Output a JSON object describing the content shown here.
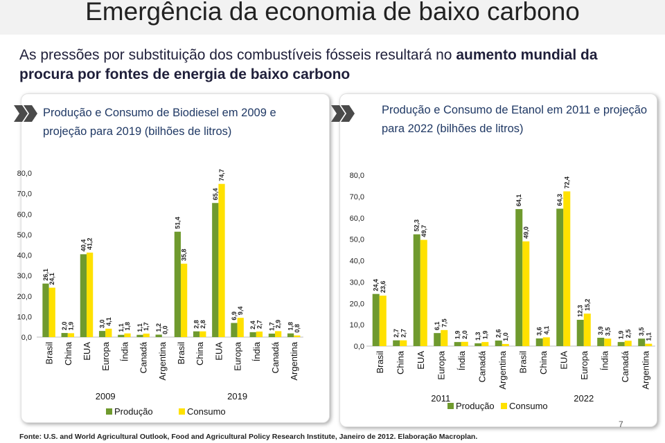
{
  "title": "Emergência da economia de baixo carbono",
  "subtitle": [
    "As pressões por substituição dos combustíveis fósseis resultará no ",
    "aumento mundial da procura por fontes de energia de baixo carbono"
  ],
  "footer": "Fonte: U.S. and World Agricultural Outlook, Food and Agricultural Policy Research Institute, Janeiro de 2012. Elaboração Macroplan.",
  "page_number": "7",
  "chart_data": [
    {
      "type": "bar",
      "title": "Produção e Consumo de Biodiesel em 2009 e projeção para 2019 (bilhões de litros)",
      "categories": [
        "Brasil",
        "China",
        "EUA",
        "Europa",
        "Índia",
        "Canadá",
        "Argentina",
        "Brasil",
        "China",
        "EUA",
        "Europa",
        "Índia",
        "Canadá",
        "Argentina"
      ],
      "group_labels": [
        "2009",
        "2019"
      ],
      "series": [
        {
          "name": "Produção",
          "color": "#6f9a2e",
          "values": [
            26.1,
            2.0,
            40.4,
            3.0,
            1.1,
            1.1,
            1.2,
            51.4,
            2.8,
            65.4,
            6.9,
            2.4,
            1.7,
            1.8
          ],
          "value_labels": [
            "26,1",
            "2,0",
            "40,4",
            "3,0",
            "1,1",
            "1,1",
            "1,2",
            "51,4",
            "2,8",
            "65,4",
            "6,9",
            "2,4",
            "1,7",
            "1,8"
          ]
        },
        {
          "name": "Consumo",
          "color": "#ffe100",
          "values": [
            24.1,
            1.9,
            41.2,
            4.1,
            1.8,
            1.7,
            0.0,
            35.8,
            2.8,
            74.7,
            9.4,
            2.7,
            2.9,
            0.8
          ],
          "value_labels": [
            "24,1",
            "1,9",
            "41,2",
            "4,1",
            "1,8",
            "1,7",
            "0,0",
            "35,8",
            "2,8",
            "74,7",
            "9,4",
            "2,7",
            "2,9",
            "0,8"
          ]
        }
      ],
      "ylim": [
        0,
        80
      ],
      "yticks": [
        {
          "value": 0,
          "label": "0,0"
        },
        {
          "value": 10,
          "label": "10,0"
        },
        {
          "value": 20,
          "label": "20,0"
        },
        {
          "value": 30,
          "label": "30,0"
        },
        {
          "value": 40,
          "label": "40,0"
        },
        {
          "value": 50,
          "label": "50,0"
        },
        {
          "value": 60,
          "label": "60,0"
        },
        {
          "value": 70,
          "label": "70,0"
        },
        {
          "value": 80,
          "label": "80,0"
        }
      ],
      "grid": false
    },
    {
      "type": "bar",
      "title": "Produção e Consumo de Etanol em 2011 e projeção para 2022 (bilhões de litros)",
      "categories": [
        "Brasil",
        "China",
        "EUA",
        "Europa",
        "Índia",
        "Canadá",
        "Argentina",
        "Brasil",
        "China",
        "EUA",
        "Europa",
        "Índia",
        "Canadá",
        "Argentina"
      ],
      "group_labels": [
        "2011",
        "2022"
      ],
      "series": [
        {
          "name": "Produção",
          "color": "#6f9a2e",
          "values": [
            24.4,
            2.7,
            52.3,
            6.1,
            1.9,
            1.3,
            2.6,
            64.1,
            3.6,
            64.3,
            12.3,
            3.9,
            1.9,
            3.5
          ],
          "value_labels": [
            "24,4",
            "2,7",
            "52,3",
            "6,1",
            "1,9",
            "1,3",
            "2,6",
            "64,1",
            "3,6",
            "64,3",
            "12,3",
            "3,9",
            "1,9",
            "3,5"
          ]
        },
        {
          "name": "Consumo",
          "color": "#ffe100",
          "values": [
            23.6,
            2.7,
            49.7,
            7.5,
            2.0,
            1.9,
            1.0,
            49.0,
            4.1,
            72.4,
            15.2,
            3.5,
            2.5,
            1.1
          ],
          "value_labels": [
            "23,6",
            "2,7",
            "49,7",
            "7,5",
            "2,0",
            "1,9",
            "1,0",
            "49,0",
            "4,1",
            "72,4",
            "15,2",
            "3,5",
            "2,5",
            "1,1"
          ]
        }
      ],
      "ylim": [
        0,
        80
      ],
      "yticks": [
        {
          "value": 0,
          "label": "0,0"
        },
        {
          "value": 10,
          "label": "10,0"
        },
        {
          "value": 20,
          "label": "20,0"
        },
        {
          "value": 30,
          "label": "30,0"
        },
        {
          "value": 40,
          "label": "40,0"
        },
        {
          "value": 50,
          "label": "50,0"
        },
        {
          "value": 60,
          "label": "60,0"
        },
        {
          "value": 70,
          "label": "70,0"
        },
        {
          "value": 80,
          "label": "80,0"
        }
      ],
      "grid": false
    }
  ]
}
